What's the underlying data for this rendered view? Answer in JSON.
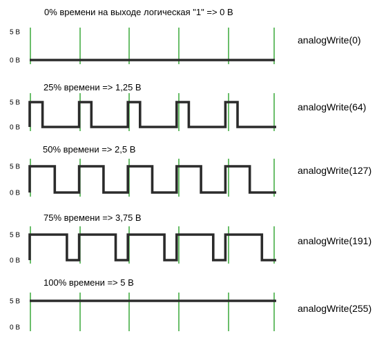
{
  "pwm_rows": [
    {
      "title": "0% времени на выходе логическая \"1\"    =>    0 В",
      "duty_percent": 0,
      "high_label": "5 В",
      "low_label": "0 В",
      "call": "analogWrite(0)"
    },
    {
      "title": "25% времени   =>   1,25 В",
      "duty_percent": 25,
      "high_label": "5 В",
      "low_label": "0 В",
      "call": "analogWrite(64)"
    },
    {
      "title": "50% времени   =>   2,5 В",
      "duty_percent": 50,
      "high_label": "5 В",
      "low_label": "0 В",
      "call": "analogWrite(127)"
    },
    {
      "title": "75% времени   =>   3,75 В",
      "duty_percent": 75,
      "high_label": "5 В",
      "low_label": "0 В",
      "call": "analogWrite(191)"
    },
    {
      "title": "100% времени   =>   5 В",
      "duty_percent": 100,
      "high_label": "5 В",
      "low_label": "0 В",
      "call": "analogWrite(255)"
    }
  ],
  "periods_shown": 5,
  "colors": {
    "signal": "#2b2b2b",
    "period_marker": "#1a9a1a",
    "text": "#000000"
  }
}
